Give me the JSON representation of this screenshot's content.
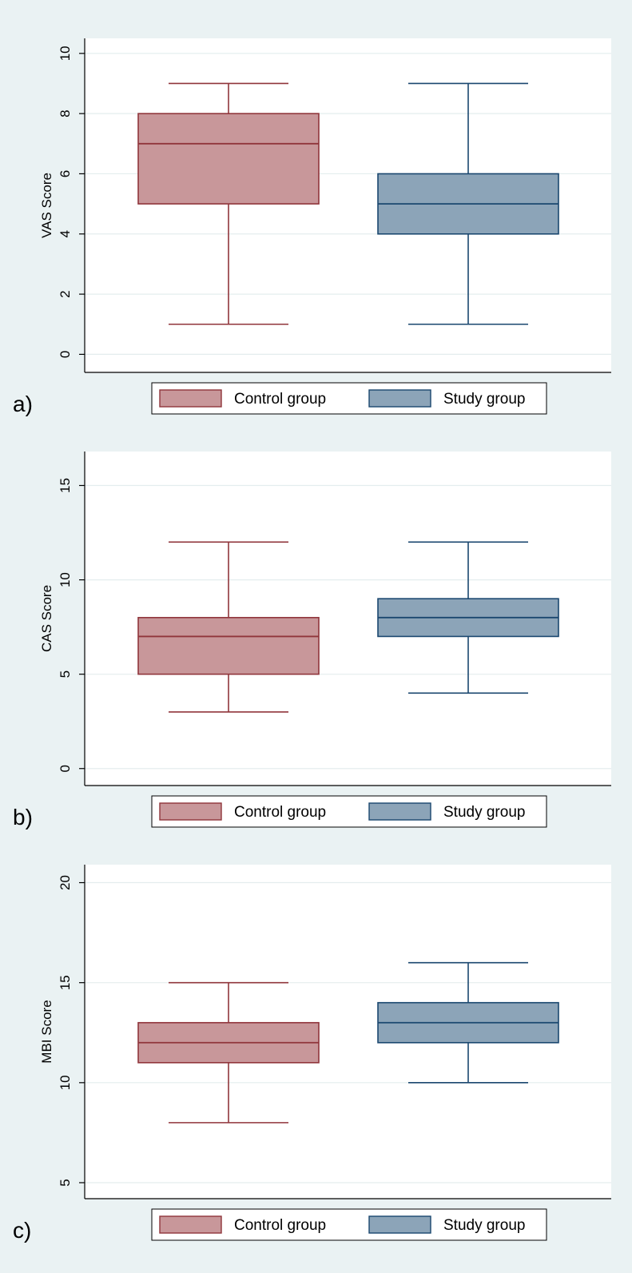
{
  "colors": {
    "background": "#eaf2f3",
    "plot_region": "#ffffff",
    "grid": "#e4edee",
    "control_fill": "#c8979a",
    "control_stroke": "#90353b",
    "study_fill": "#8ca4b8",
    "study_stroke": "#1a476f"
  },
  "chart_data": [
    {
      "type": "box",
      "panel_label": "a)",
      "ylabel": "VAS Score",
      "ylim": [
        -0.6,
        10.5
      ],
      "yticks": [
        0,
        2,
        4,
        6,
        8,
        10
      ],
      "grid": true,
      "legend": {
        "placement": "bottom",
        "entries": [
          "Control group",
          "Study group"
        ]
      },
      "series": [
        {
          "name": "Control group",
          "min": 1,
          "q1": 5,
          "median": 7,
          "q3": 8,
          "max": 9
        },
        {
          "name": "Study group",
          "min": 1,
          "q1": 4,
          "median": 5,
          "q3": 6,
          "max": 9
        }
      ]
    },
    {
      "type": "box",
      "panel_label": "b)",
      "ylabel": "CAS Score",
      "ylim": [
        -0.9,
        16.8
      ],
      "yticks": [
        0,
        5,
        10,
        15
      ],
      "grid": true,
      "legend": {
        "placement": "bottom",
        "entries": [
          "Control group",
          "Study group"
        ]
      },
      "series": [
        {
          "name": "Control group",
          "min": 3,
          "q1": 5,
          "median": 7,
          "q3": 8,
          "max": 12
        },
        {
          "name": "Study group",
          "min": 4,
          "q1": 7,
          "median": 8,
          "q3": 9,
          "max": 12
        }
      ]
    },
    {
      "type": "box",
      "panel_label": "c)",
      "ylabel": "MBI Score",
      "ylim": [
        4.2,
        20.9
      ],
      "yticks": [
        5,
        10,
        15,
        20
      ],
      "grid": true,
      "legend": {
        "placement": "bottom",
        "entries": [
          "Control group",
          "Study group"
        ]
      },
      "series": [
        {
          "name": "Control group",
          "min": 8,
          "q1": 11,
          "median": 12,
          "q3": 13,
          "max": 15
        },
        {
          "name": "Study group",
          "min": 10,
          "q1": 12,
          "median": 13,
          "q3": 14,
          "max": 16
        }
      ]
    }
  ]
}
